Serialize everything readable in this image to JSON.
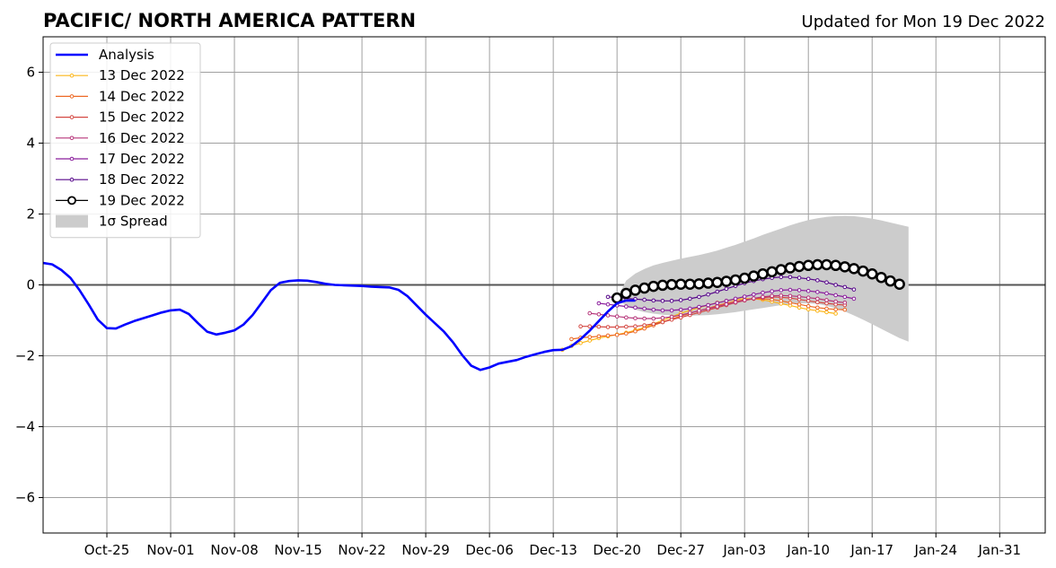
{
  "chart_data": {
    "type": "line",
    "title": "PACIFIC/ NORTH AMERICA PATTERN",
    "subtitle": "Updated for Mon 19 Dec 2022",
    "xlabel": "",
    "ylabel": "",
    "ylim": [
      -7,
      7
    ],
    "xlim": [
      "2022-10-18",
      "2023-02-05"
    ],
    "yticks": [
      -6,
      -4,
      -2,
      0,
      2,
      4,
      6
    ],
    "ytick_labels": [
      "−6",
      "−4",
      "−2",
      "0",
      "2",
      "4",
      "6"
    ],
    "xticks": [
      "2022-10-25",
      "2022-11-01",
      "2022-11-08",
      "2022-11-15",
      "2022-11-22",
      "2022-11-29",
      "2022-12-06",
      "2022-12-13",
      "2022-12-20",
      "2022-12-27",
      "2023-01-03",
      "2023-01-10",
      "2023-01-17",
      "2023-01-24",
      "2023-01-31"
    ],
    "xtick_labels": [
      "Oct-25",
      "Nov-01",
      "Nov-08",
      "Nov-15",
      "Nov-22",
      "Nov-29",
      "Dec-06",
      "Dec-13",
      "Dec-20",
      "Dec-27",
      "Jan-03",
      "Jan-10",
      "Jan-17",
      "Jan-24",
      "Jan-31"
    ],
    "grid": true,
    "legend_position": "top-left",
    "colors": {
      "analysis": "#0000ff",
      "d13": "#fbb61a",
      "d14": "#ed6925",
      "d15": "#d44842",
      "d16": "#b6357a",
      "d17": "#8a1d9c",
      "d18": "#56068a",
      "d19": "#000000",
      "spread": "#cccccc",
      "grid": "#a0a0a0",
      "zero": "#555555"
    },
    "legend": [
      {
        "label": "Analysis",
        "color": "#0000ff",
        "style": "analysis"
      },
      {
        "label": "13 Dec 2022",
        "color": "#fbb61a",
        "style": "dots"
      },
      {
        "label": "14 Dec 2022",
        "color": "#ed6925",
        "style": "dots"
      },
      {
        "label": "15 Dec 2022",
        "color": "#d44842",
        "style": "dots"
      },
      {
        "label": "16 Dec 2022",
        "color": "#b6357a",
        "style": "dots"
      },
      {
        "label": "17 Dec 2022",
        "color": "#8a1d9c",
        "style": "dots"
      },
      {
        "label": "18 Dec 2022",
        "color": "#56068a",
        "style": "dots"
      },
      {
        "label": "19 Dec 2022",
        "color": "#000000",
        "style": "circles"
      },
      {
        "label": "1σ Spread",
        "color": "#cccccc",
        "style": "patch"
      }
    ],
    "analysis": {
      "name": "Analysis",
      "start": "2022-10-18",
      "values": [
        0.62,
        0.58,
        0.42,
        0.2,
        -0.15,
        -0.55,
        -0.98,
        -1.22,
        -1.23,
        -1.12,
        -1.02,
        -0.94,
        -0.86,
        -0.78,
        -0.72,
        -0.7,
        -0.82,
        -1.08,
        -1.32,
        -1.4,
        -1.35,
        -1.28,
        -1.12,
        -0.85,
        -0.5,
        -0.15,
        0.06,
        0.11,
        0.13,
        0.12,
        0.08,
        0.03,
        0.0,
        -0.01,
        -0.02,
        -0.03,
        -0.05,
        -0.06,
        -0.07,
        -0.14,
        -0.32,
        -0.58,
        -0.84,
        -1.08,
        -1.32,
        -1.62,
        -1.98,
        -2.28,
        -2.4,
        -2.33,
        -2.22,
        -2.17,
        -2.12,
        -2.03,
        -1.96,
        -1.89,
        -1.84,
        -1.83,
        -1.73,
        -1.53,
        -1.29,
        -1.02,
        -0.75,
        -0.52,
        -0.44,
        -0.44
      ]
    },
    "forecasts": [
      {
        "name": "13 Dec 2022",
        "start": "2022-12-14",
        "values": [
          -1.83,
          -1.72,
          -1.64,
          -1.57,
          -1.5,
          -1.45,
          -1.4,
          -1.35,
          -1.28,
          -1.2,
          -1.1,
          -1.0,
          -0.9,
          -0.8,
          -0.72,
          -0.64,
          -0.57,
          -0.5,
          -0.45,
          -0.41,
          -0.39,
          -0.39,
          -0.42,
          -0.47,
          -0.53,
          -0.58,
          -0.64,
          -0.69,
          -0.73,
          -0.77,
          -0.81
        ]
      },
      {
        "name": "14 Dec 2022",
        "start": "2022-12-15",
        "values": [
          -1.53,
          -1.49,
          -1.47,
          -1.45,
          -1.43,
          -1.41,
          -1.37,
          -1.31,
          -1.23,
          -1.14,
          -1.05,
          -0.96,
          -0.88,
          -0.8,
          -0.73,
          -0.66,
          -0.58,
          -0.52,
          -0.46,
          -0.42,
          -0.39,
          -0.39,
          -0.41,
          -0.45,
          -0.5,
          -0.55,
          -0.6,
          -0.64,
          -0.67,
          -0.69,
          -0.7
        ]
      },
      {
        "name": "15 Dec 2022",
        "start": "2022-12-16",
        "values": [
          -1.17,
          -1.17,
          -1.18,
          -1.19,
          -1.19,
          -1.18,
          -1.17,
          -1.14,
          -1.1,
          -1.05,
          -0.98,
          -0.92,
          -0.85,
          -0.78,
          -0.71,
          -0.64,
          -0.57,
          -0.5,
          -0.44,
          -0.39,
          -0.36,
          -0.34,
          -0.35,
          -0.37,
          -0.41,
          -0.45,
          -0.49,
          -0.52,
          -0.55,
          -0.57
        ]
      },
      {
        "name": "16 Dec 2022",
        "start": "2022-12-17",
        "values": [
          -0.8,
          -0.83,
          -0.86,
          -0.89,
          -0.92,
          -0.94,
          -0.95,
          -0.95,
          -0.93,
          -0.9,
          -0.85,
          -0.79,
          -0.73,
          -0.67,
          -0.61,
          -0.55,
          -0.49,
          -0.43,
          -0.38,
          -0.34,
          -0.31,
          -0.3,
          -0.31,
          -0.33,
          -0.36,
          -0.39,
          -0.43,
          -0.47,
          -0.5
        ]
      },
      {
        "name": "17 Dec 2022",
        "start": "2022-12-18",
        "values": [
          -0.52,
          -0.55,
          -0.58,
          -0.61,
          -0.64,
          -0.67,
          -0.7,
          -0.72,
          -0.72,
          -0.7,
          -0.67,
          -0.62,
          -0.57,
          -0.51,
          -0.45,
          -0.39,
          -0.33,
          -0.27,
          -0.22,
          -0.18,
          -0.15,
          -0.14,
          -0.15,
          -0.17,
          -0.2,
          -0.24,
          -0.29,
          -0.34,
          -0.39
        ]
      },
      {
        "name": "18 Dec 2022",
        "start": "2022-12-19",
        "values": [
          -0.34,
          -0.36,
          -0.38,
          -0.4,
          -0.42,
          -0.44,
          -0.45,
          -0.45,
          -0.43,
          -0.39,
          -0.34,
          -0.27,
          -0.19,
          -0.11,
          -0.03,
          0.05,
          0.11,
          0.16,
          0.2,
          0.22,
          0.22,
          0.2,
          0.17,
          0.13,
          0.07,
          0.0,
          -0.06,
          -0.13
        ]
      },
      {
        "name": "19 Dec 2022",
        "start": "2022-12-20",
        "values": [
          -0.37,
          -0.24,
          -0.15,
          -0.09,
          -0.04,
          -0.01,
          0.01,
          0.02,
          0.02,
          0.03,
          0.05,
          0.07,
          0.1,
          0.14,
          0.19,
          0.25,
          0.31,
          0.37,
          0.43,
          0.48,
          0.52,
          0.55,
          0.57,
          0.57,
          0.55,
          0.51,
          0.46,
          0.39,
          0.31,
          0.21,
          0.11,
          0.02
        ]
      }
    ],
    "spread": {
      "name": "1σ Spread",
      "start": "2022-12-20",
      "upper": [
        -0.37,
        0.12,
        0.32,
        0.45,
        0.55,
        0.62,
        0.68,
        0.74,
        0.79,
        0.84,
        0.9,
        0.97,
        1.05,
        1.13,
        1.22,
        1.31,
        1.41,
        1.5,
        1.59,
        1.68,
        1.76,
        1.83,
        1.88,
        1.92,
        1.94,
        1.95,
        1.94,
        1.91,
        1.87,
        1.82,
        1.76,
        1.7,
        1.64
      ],
      "lower": [
        -0.37,
        -0.6,
        -0.7,
        -0.77,
        -0.81,
        -0.84,
        -0.86,
        -0.87,
        -0.87,
        -0.86,
        -0.85,
        -0.83,
        -0.8,
        -0.77,
        -0.73,
        -0.69,
        -0.65,
        -0.61,
        -0.57,
        -0.54,
        -0.52,
        -0.52,
        -0.54,
        -0.59,
        -0.66,
        -0.75,
        -0.86,
        -0.98,
        -1.11,
        -1.24,
        -1.37,
        -1.5,
        -1.6
      ]
    }
  }
}
